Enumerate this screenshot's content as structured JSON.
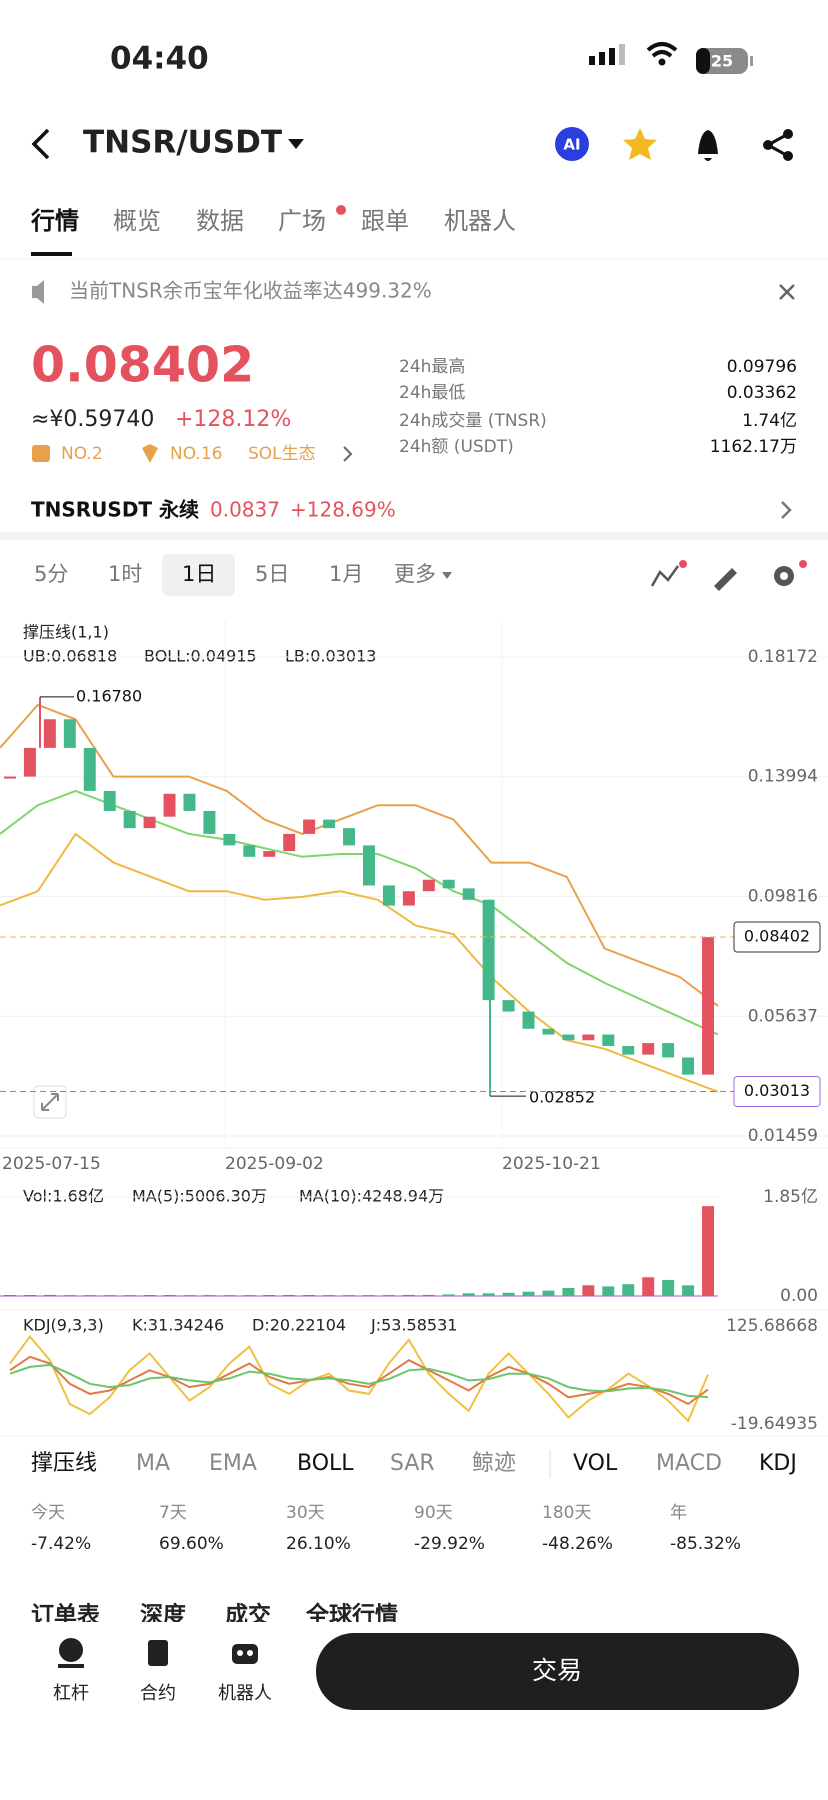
{
  "status": {
    "time": "04:40",
    "battery": "25"
  },
  "header": {
    "pair": "TNSR/USDT",
    "ai": "AI"
  },
  "tabs": [
    "行情",
    "概览",
    "数据",
    "广场",
    "跟单",
    "机器人"
  ],
  "active_tab": 0,
  "notice": "当前TNSR余币宝年化收益率达499.32%",
  "price": {
    "last": "0.08402",
    "cny": "≈¥0.59740",
    "change": "+128.12%",
    "badges": [
      "NO.2",
      "NO.16",
      "SOL生态"
    ]
  },
  "stats": [
    {
      "label": "24h最高",
      "value": "0.09796"
    },
    {
      "label": "24h最低",
      "value": "0.03362"
    },
    {
      "label": "24h成交量 (TNSR)",
      "value": "1.74亿"
    },
    {
      "label": "24h额 (USDT)",
      "value": "1162.17万"
    }
  ],
  "perp": {
    "name": "TNSRUSDT 永续",
    "price": "0.0837",
    "change": "+128.69%"
  },
  "intervals": [
    "5分",
    "1时",
    "1日",
    "5日",
    "1月",
    "更多"
  ],
  "active_interval": 2,
  "kline": {
    "type": "candlestick",
    "legend": {
      "title": "撑压线(1,1)",
      "ub": "UB:0.06818",
      "boll": "BOLL:0.04915",
      "lb": "LB:0.03013"
    },
    "ylim": [
      0.01459,
      0.18172
    ],
    "yticks": [
      0.18172,
      0.13994,
      0.09816,
      0.05637,
      0.01459
    ],
    "dates": [
      "2025-07-15",
      "2025-09-02",
      "2025-10-21"
    ],
    "closes": [
      0.14,
      0.15,
      0.16,
      0.15,
      0.135,
      0.128,
      0.122,
      0.126,
      0.134,
      0.128,
      0.12,
      0.116,
      0.112,
      0.114,
      0.12,
      0.125,
      0.122,
      0.116,
      0.102,
      0.095,
      0.1,
      0.104,
      0.101,
      0.097,
      0.062,
      0.058,
      0.052,
      0.05,
      0.048,
      0.05,
      0.046,
      0.043,
      0.047,
      0.042,
      0.036,
      0.084
    ],
    "upper": [
      0.15,
      0.165,
      0.16,
      0.14,
      0.14,
      0.14,
      0.135,
      0.125,
      0.12,
      0.125,
      0.13,
      0.13,
      0.125,
      0.11,
      0.11,
      0.105,
      0.08,
      0.075,
      0.07,
      0.06
    ],
    "mid": [
      0.12,
      0.13,
      0.135,
      0.13,
      0.125,
      0.12,
      0.118,
      0.115,
      0.112,
      0.113,
      0.113,
      0.108,
      0.1,
      0.095,
      0.085,
      0.075,
      0.068,
      0.062,
      0.056,
      0.05
    ],
    "lower": [
      0.095,
      0.1,
      0.12,
      0.11,
      0.105,
      0.1,
      0.1,
      0.097,
      0.098,
      0.1,
      0.097,
      0.088,
      0.085,
      0.07,
      0.058,
      0.048,
      0.045,
      0.04,
      0.035,
      0.03
    ],
    "high": {
      "value": 0.1678,
      "label": "0.16780"
    },
    "low": 0.02852,
    "current": 0.08402,
    "lb_tag": 0.03013
  },
  "volume": {
    "legend": {
      "vol": "Vol:1.68亿",
      "ma5": "MA(5):5006.30万",
      "ma10": "MA(10):4248.94万"
    },
    "ylim": [
      0,
      1.85
    ],
    "yticks": [
      {
        "value": 1.85,
        "label": "1.85亿"
      },
      {
        "value": 0,
        "label": "0.00"
      }
    ],
    "values": [
      0.01,
      0.01,
      0.02,
      0.01,
      0.01,
      0.01,
      0.01,
      0.01,
      0.01,
      0.01,
      0.02,
      0.01,
      0.01,
      0.01,
      0.01,
      0.01,
      0.01,
      0.01,
      0.01,
      0.02,
      0.02,
      0.02,
      0.03,
      0.05,
      0.05,
      0.06,
      0.08,
      0.1,
      0.15,
      0.2,
      0.18,
      0.22,
      0.35,
      0.3,
      0.2,
      1.68
    ]
  },
  "kdj": {
    "legend": {
      "name": "KDJ(9,3,3)",
      "k": "K:31.34246",
      "d": "D:20.22104",
      "j": "J:53.58531"
    },
    "ylim": [
      -19.64935,
      125.68668
    ],
    "yticks": [
      125.68668,
      -19.64935
    ],
    "k": [
      60,
      80,
      70,
      40,
      25,
      30,
      45,
      60,
      50,
      35,
      40,
      55,
      70,
      50,
      40,
      45,
      50,
      40,
      35,
      55,
      75,
      60,
      45,
      30,
      50,
      65,
      55,
      40,
      20,
      25,
      30,
      40,
      35,
      25,
      10,
      31.34246
    ],
    "d": [
      55,
      65,
      68,
      55,
      40,
      35,
      38,
      48,
      50,
      45,
      42,
      48,
      58,
      55,
      48,
      46,
      48,
      45,
      40,
      47,
      60,
      62,
      55,
      45,
      47,
      55,
      55,
      48,
      35,
      30,
      29,
      33,
      34,
      30,
      22,
      20.22104
    ],
    "j": [
      70,
      110,
      75,
      10,
      -5,
      20,
      60,
      85,
      50,
      15,
      35,
      70,
      95,
      40,
      25,
      45,
      55,
      30,
      25,
      70,
      105,
      55,
      25,
      0,
      55,
      85,
      55,
      25,
      -10,
      15,
      32,
      55,
      37,
      15,
      -15,
      53.58531
    ]
  },
  "indicators": [
    "撑压线",
    "MA",
    "EMA",
    "BOLL",
    "SAR",
    "鲸迹",
    "VOL",
    "MACD",
    "KDJ"
  ],
  "active_indicators": [
    0,
    3,
    6,
    8
  ],
  "perf": [
    {
      "label": "今天",
      "value": "-7.42%"
    },
    {
      "label": "7天",
      "value": "69.60%"
    },
    {
      "label": "30天",
      "value": "26.10%"
    },
    {
      "label": "90天",
      "value": "-29.92%"
    },
    {
      "label": "180天",
      "value": "-48.26%"
    },
    {
      "label": "年",
      "value": "-85.32%"
    }
  ],
  "orders": [
    "订单表",
    "深度",
    "成交",
    "全球行情"
  ],
  "bottom": {
    "nav": [
      "杠杆",
      "合约",
      "机器人"
    ],
    "trade": "交易"
  }
}
